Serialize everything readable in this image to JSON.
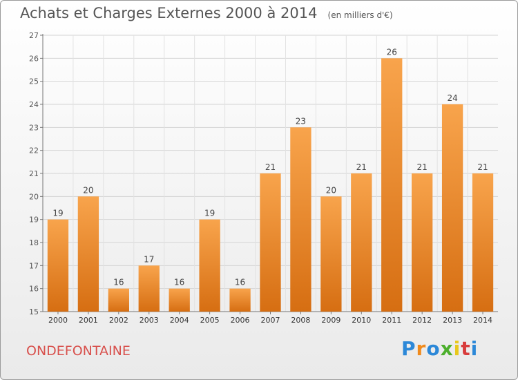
{
  "chart_data": {
    "type": "bar",
    "title": "Achats et Charges Externes 2000 à 2014",
    "subtitle": "(en milliers d'€)",
    "categories": [
      "2000",
      "2001",
      "2002",
      "2003",
      "2004",
      "2005",
      "2006",
      "2007",
      "2008",
      "2009",
      "2010",
      "2011",
      "2012",
      "2013",
      "2014"
    ],
    "values": [
      19,
      20,
      16,
      17,
      16,
      19,
      16,
      21,
      23,
      20,
      21,
      26,
      21,
      24,
      21
    ],
    "ylim": [
      15,
      27
    ],
    "yticks": [
      15,
      16,
      17,
      18,
      19,
      20,
      21,
      22,
      23,
      24,
      25,
      26,
      27
    ],
    "grid": true,
    "bar_color": "#f29437"
  },
  "footer": {
    "commune": "ONDEFONTAINE",
    "brand": [
      "P",
      "r",
      "o",
      "x",
      "i",
      "t",
      "i"
    ]
  },
  "colors": {
    "brand_letters": [
      "#2c88d8",
      "#f08a1c",
      "#2c88d8",
      "#4caf2c",
      "#e8c81c",
      "#d83c3c",
      "#2c88d8"
    ]
  }
}
